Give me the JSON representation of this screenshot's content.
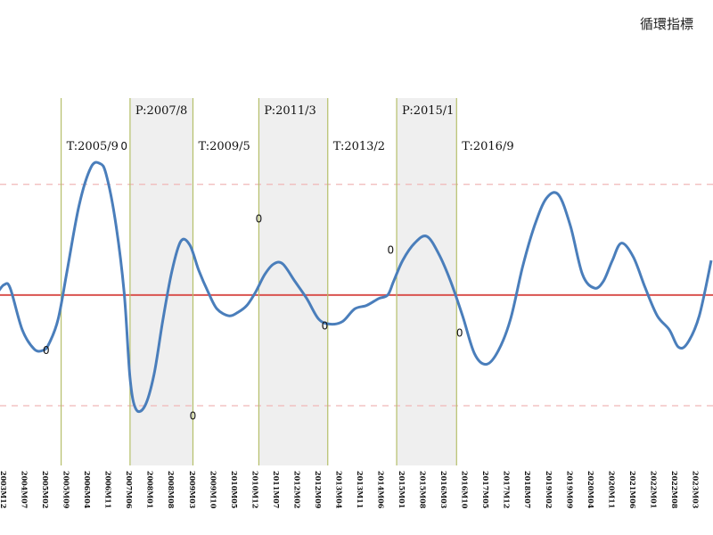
{
  "chart_data": {
    "type": "line",
    "title": "循環指標",
    "x_axis": {
      "tick_labels": [
        "2003M12",
        "2004M07",
        "2005M02",
        "2005M09",
        "2006M04",
        "2006M11",
        "2007M06",
        "2008M01",
        "2008M08",
        "2009M03",
        "2009M10",
        "2010M05",
        "2010M12",
        "2011M07",
        "2012M02",
        "2012M09",
        "2013M04",
        "2013M11",
        "2014M06",
        "2015M01",
        "2015M08",
        "2016M03",
        "2016M10",
        "2017M05",
        "2017M12",
        "2018M07",
        "2019M02",
        "2019M09",
        "2020M04",
        "2020M11",
        "2021M06",
        "2022M01",
        "2022M08",
        "2023M03",
        "2023M10"
      ]
    },
    "ylim": [
      -1.6,
      2.1
    ],
    "reference_lines": [
      {
        "value": 0,
        "style": "solid",
        "color": "#d9534f"
      },
      {
        "value": 1.6,
        "style": "dashed",
        "color": "#f0b8b8"
      },
      {
        "value": -1.6,
        "style": "dashed",
        "color": "#f0b8b8"
      }
    ],
    "phase_lines": [
      {
        "label": "T:2005/9",
        "x": "2005-09"
      },
      {
        "label": "P:2007/8",
        "x": "2007-08"
      },
      {
        "label": "T:2009/5",
        "x": "2009-05"
      },
      {
        "label": "P:2011/3",
        "x": "2011-03"
      },
      {
        "label": "T:2013/2",
        "x": "2013-02"
      },
      {
        "label": "P:2015/1",
        "x": "2015-01"
      },
      {
        "label": "T:2016/9",
        "x": "2016-09"
      }
    ],
    "shaded_ranges": [
      {
        "from": "2007-08",
        "to": "2009-05"
      },
      {
        "from": "2011-03",
        "to": "2013-02"
      },
      {
        "from": "2015-01",
        "to": "2016-09"
      }
    ],
    "turning_point_labels": [
      {
        "text": "0",
        "x": "2005-04",
        "y": -0.85
      },
      {
        "text": "0",
        "x": "2007-06",
        "y": 2.1
      },
      {
        "text": "0",
        "x": "2009-05",
        "y": -1.8
      },
      {
        "text": "0",
        "x": "2011-03",
        "y": 1.05
      },
      {
        "text": "0",
        "x": "2013-01",
        "y": -0.5
      },
      {
        "text": "0",
        "x": "2014-11",
        "y": 0.6
      },
      {
        "text": "0",
        "x": "2016-10",
        "y": -0.6
      }
    ],
    "series": [
      {
        "color": "#4a7ebb",
        "x": [
          "2003-12",
          "2004-02",
          "2004-04",
          "2004-08",
          "2004-12",
          "2005-03",
          "2005-05",
          "2005-08",
          "2005-11",
          "2006-03",
          "2006-07",
          "2006-10",
          "2006-12",
          "2007-03",
          "2007-06",
          "2007-08",
          "2007-10",
          "2008-01",
          "2008-04",
          "2008-07",
          "2008-10",
          "2009-01",
          "2009-04",
          "2009-07",
          "2009-10",
          "2010-01",
          "2010-05",
          "2010-08",
          "2010-11",
          "2011-02",
          "2011-05",
          "2011-08",
          "2011-11",
          "2012-03",
          "2012-07",
          "2012-11",
          "2013-03",
          "2013-07",
          "2013-11",
          "2014-03",
          "2014-07",
          "2014-10",
          "2014-12",
          "2015-03",
          "2015-07",
          "2015-11",
          "2016-03",
          "2016-07",
          "2016-11",
          "2017-03",
          "2017-07",
          "2017-11",
          "2018-03",
          "2018-07",
          "2018-11",
          "2019-03",
          "2019-07",
          "2019-11",
          "2020-03",
          "2020-07",
          "2020-10",
          "2021-01",
          "2021-04",
          "2021-08",
          "2021-12",
          "2022-04",
          "2022-08",
          "2022-11",
          "2023-02",
          "2023-06",
          "2023-10"
        ],
        "y": [
          0.05,
          0.15,
          0.1,
          -0.5,
          -0.78,
          -0.8,
          -0.7,
          -0.35,
          0.35,
          1.3,
          1.85,
          1.9,
          1.75,
          1.1,
          0.05,
          -1.2,
          -1.65,
          -1.6,
          -1.15,
          -0.35,
          0.35,
          0.78,
          0.72,
          0.35,
          0.05,
          -0.2,
          -0.3,
          -0.25,
          -0.15,
          0.05,
          0.3,
          0.45,
          0.45,
          0.2,
          -0.05,
          -0.35,
          -0.42,
          -0.38,
          -0.2,
          -0.15,
          -0.05,
          0.0,
          0.2,
          0.5,
          0.75,
          0.85,
          0.6,
          0.2,
          -0.3,
          -0.85,
          -1.0,
          -0.8,
          -0.35,
          0.4,
          1.0,
          1.4,
          1.45,
          1.0,
          0.3,
          0.1,
          0.2,
          0.5,
          0.75,
          0.55,
          0.1,
          -0.3,
          -0.5,
          -0.75,
          -0.7,
          -0.3,
          0.5
        ]
      }
    ]
  }
}
